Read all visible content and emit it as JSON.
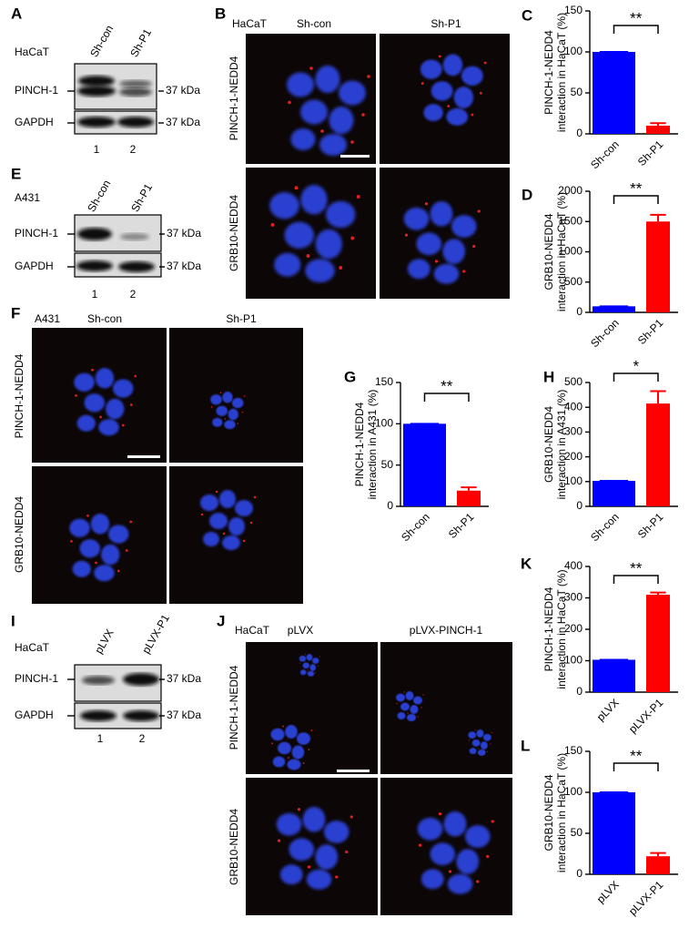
{
  "chart_data": [
    {
      "type": "bar",
      "panel": "C",
      "ylabel": [
        "PINCH-1-NEDD4",
        "interaction in HaCaT (%)"
      ],
      "categories": [
        "Sh-con",
        "Sh-P1"
      ],
      "values": [
        100,
        10
      ],
      "errors": [
        0,
        3
      ],
      "colors": [
        "#0000ff",
        "#ff0000"
      ],
      "ylim": [
        0,
        150
      ],
      "yticks": [
        0,
        50,
        100,
        150
      ],
      "significance": "**"
    },
    {
      "type": "bar",
      "panel": "D",
      "ylabel": [
        "GRB10-NEDD4",
        "interaction in HaCaT (%)"
      ],
      "categories": [
        "Sh-con",
        "Sh-P1"
      ],
      "values": [
        100,
        1500
      ],
      "errors": [
        0,
        110
      ],
      "colors": [
        "#0000ff",
        "#ff0000"
      ],
      "ylim": [
        0,
        2000
      ],
      "yticks": [
        0,
        500,
        1000,
        1500,
        2000
      ],
      "significance": "**"
    },
    {
      "type": "bar",
      "panel": "G",
      "ylabel": [
        "PINCH-1-NEDD4",
        "interaction in A431 (%)"
      ],
      "categories": [
        "Sh-con",
        "Sh-P1"
      ],
      "values": [
        100,
        19
      ],
      "errors": [
        0,
        4
      ],
      "colors": [
        "#0000ff",
        "#ff0000"
      ],
      "ylim": [
        0,
        150
      ],
      "yticks": [
        0,
        50,
        100,
        150
      ],
      "significance": "**"
    },
    {
      "type": "bar",
      "panel": "H",
      "ylabel": [
        "GRB10-NEDD4",
        "interaction in A431 (%)"
      ],
      "categories": [
        "Sh-con",
        "Sh-P1"
      ],
      "values": [
        103,
        415
      ],
      "errors": [
        0,
        50
      ],
      "colors": [
        "#0000ff",
        "#ff0000"
      ],
      "ylim": [
        0,
        500
      ],
      "yticks": [
        0,
        100,
        200,
        300,
        400,
        500
      ],
      "significance": "*"
    },
    {
      "type": "bar",
      "panel": "K",
      "ylabel": [
        "PINCH-1-NEDD4",
        "interaction in HaCaT (%)"
      ],
      "categories": [
        "pLVX",
        "pLVX-P1"
      ],
      "values": [
        103,
        310
      ],
      "errors": [
        0,
        7
      ],
      "colors": [
        "#0000ff",
        "#ff0000"
      ],
      "ylim": [
        0,
        400
      ],
      "yticks": [
        0,
        100,
        200,
        300,
        400
      ],
      "significance": "**"
    },
    {
      "type": "bar",
      "panel": "L",
      "ylabel": [
        "GRB10-NEDD4",
        "interaction in HaCaT (%)"
      ],
      "categories": [
        "pLVX",
        "pLVX-P1"
      ],
      "values": [
        100,
        22
      ],
      "errors": [
        0,
        4
      ],
      "colors": [
        "#0000ff",
        "#ff0000"
      ],
      "ylim": [
        0,
        150
      ],
      "yticks": [
        0,
        50,
        100,
        150
      ],
      "significance": "**"
    }
  ],
  "blots": [
    {
      "panel": "A",
      "cell_line": "HaCaT",
      "lanes": [
        "Sh-con",
        "Sh-P1"
      ],
      "rows": [
        "PINCH-1",
        "GAPDH"
      ],
      "size_labels": [
        "37 kDa",
        "37 kDa"
      ],
      "lane_numbers": [
        "1",
        "2"
      ]
    },
    {
      "panel": "E",
      "cell_line": "A431",
      "lanes": [
        "Sh-con",
        "Sh-P1"
      ],
      "rows": [
        "PINCH-1",
        "GAPDH"
      ],
      "size_labels": [
        "37 kDa",
        "37 kDa"
      ],
      "lane_numbers": [
        "1",
        "2"
      ]
    },
    {
      "panel": "I",
      "cell_line": "HaCaT",
      "lanes": [
        "pLVX",
        "pLVX-P1"
      ],
      "rows": [
        "PINCH-1",
        "GAPDH"
      ],
      "size_labels": [
        "37 kDa",
        "37 kDa"
      ],
      "lane_numbers": [
        "1",
        "2"
      ]
    }
  ],
  "images": [
    {
      "panel": "B",
      "cell_line": "HaCaT",
      "columns": [
        "Sh-con",
        "Sh-P1"
      ],
      "rows": [
        "PINCH-1-NEDD4",
        "GRB10-NEDD4"
      ]
    },
    {
      "panel": "F",
      "cell_line": "A431",
      "columns": [
        "Sh-con",
        "Sh-P1"
      ],
      "rows": [
        "PINCH-1-NEDD4",
        "GRB10-NEDD4"
      ]
    },
    {
      "panel": "J",
      "cell_line": "HaCaT",
      "columns": [
        "pLVX",
        "pLVX-PINCH-1"
      ],
      "rows": [
        "PINCH-1-NEDD4",
        "GRB10-NEDD4"
      ]
    }
  ]
}
